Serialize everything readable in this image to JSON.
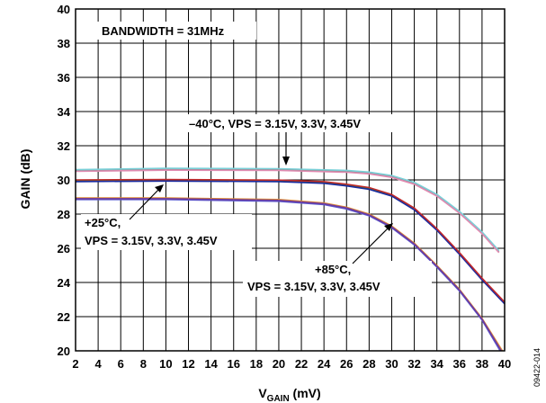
{
  "chart_data": {
    "type": "line",
    "xlabel": "V",
    "xlabel_sub": "GAIN",
    "xlabel_unit": " (mV)",
    "ylabel": "GAIN (dB)",
    "xlim": [
      2,
      40
    ],
    "ylim": [
      20,
      40
    ],
    "x_ticks": [
      2,
      4,
      6,
      8,
      10,
      12,
      14,
      16,
      18,
      20,
      22,
      24,
      26,
      28,
      30,
      32,
      34,
      36,
      38,
      40
    ],
    "y_ticks": [
      20,
      22,
      24,
      26,
      28,
      30,
      32,
      34,
      36,
      38,
      40
    ],
    "grid": true,
    "annotations": {
      "bandwidth": "BANDWIDTH = 31MHz",
      "cold": "–40°C, VPS = 3.15V, 3.3V, 3.45V",
      "room_line1": "+25°C,",
      "room_line2": "VPS = 3.15V, 3.3V, 3.45V",
      "hot_line1": "+85°C,",
      "hot_line2": "VPS = 3.15V, 3.3V, 3.45V"
    },
    "figure_id": "09422-014",
    "series": [
      {
        "color": "#8a8a8a",
        "points": [
          [
            2,
            30.55
          ],
          [
            10,
            30.62
          ],
          [
            20,
            30.6
          ],
          [
            26,
            30.5
          ],
          [
            28,
            30.4
          ],
          [
            30,
            30.2
          ],
          [
            32,
            29.8
          ],
          [
            34,
            29.1
          ],
          [
            36,
            28.1
          ],
          [
            38,
            26.9
          ],
          [
            39.5,
            25.8
          ]
        ]
      },
      {
        "color": "#7ad0d8",
        "points": [
          [
            2,
            30.6
          ],
          [
            10,
            30.68
          ],
          [
            20,
            30.66
          ],
          [
            26,
            30.56
          ],
          [
            28,
            30.46
          ],
          [
            30,
            30.26
          ],
          [
            32,
            29.86
          ],
          [
            34,
            29.16
          ],
          [
            36,
            28.16
          ],
          [
            38,
            26.96
          ],
          [
            39.5,
            25.86
          ]
        ]
      },
      {
        "color": "#e08ab0",
        "points": [
          [
            2,
            30.5
          ],
          [
            10,
            30.57
          ],
          [
            20,
            30.55
          ],
          [
            26,
            30.45
          ],
          [
            28,
            30.35
          ],
          [
            30,
            30.15
          ],
          [
            32,
            29.75
          ],
          [
            34,
            29.05
          ],
          [
            36,
            28.05
          ],
          [
            38,
            26.85
          ],
          [
            39.5,
            25.75
          ]
        ]
      },
      {
        "color": "#1f8a3a",
        "points": [
          [
            2,
            29.95
          ],
          [
            10,
            29.98
          ],
          [
            20,
            29.95
          ],
          [
            24,
            29.85
          ],
          [
            26,
            29.7
          ],
          [
            28,
            29.5
          ],
          [
            30,
            29.1
          ],
          [
            32,
            28.3
          ],
          [
            34,
            27.1
          ],
          [
            36,
            25.7
          ],
          [
            38,
            24.2
          ],
          [
            40,
            22.8
          ]
        ]
      },
      {
        "color": "#1a2aa0",
        "points": [
          [
            2,
            29.9
          ],
          [
            10,
            29.93
          ],
          [
            20,
            29.9
          ],
          [
            24,
            29.8
          ],
          [
            26,
            29.65
          ],
          [
            28,
            29.45
          ],
          [
            30,
            29.05
          ],
          [
            32,
            28.25
          ],
          [
            34,
            27.05
          ],
          [
            36,
            25.65
          ],
          [
            38,
            24.15
          ],
          [
            40,
            22.75
          ]
        ]
      },
      {
        "color": "#c0282a",
        "points": [
          [
            2,
            30.0
          ],
          [
            10,
            30.02
          ],
          [
            20,
            29.99
          ],
          [
            24,
            29.9
          ],
          [
            26,
            29.75
          ],
          [
            28,
            29.55
          ],
          [
            30,
            29.15
          ],
          [
            32,
            28.35
          ],
          [
            34,
            27.15
          ],
          [
            36,
            25.75
          ],
          [
            38,
            24.25
          ],
          [
            40,
            22.85
          ]
        ]
      },
      {
        "color": "#e08a30",
        "points": [
          [
            2,
            28.95
          ],
          [
            10,
            28.95
          ],
          [
            20,
            28.85
          ],
          [
            24,
            28.65
          ],
          [
            26,
            28.4
          ],
          [
            28,
            28.0
          ],
          [
            30,
            27.3
          ],
          [
            32,
            26.3
          ],
          [
            34,
            25.0
          ],
          [
            36,
            23.6
          ],
          [
            38,
            21.9
          ],
          [
            39.8,
            20.0
          ]
        ]
      },
      {
        "color": "#5a5ad0",
        "points": [
          [
            2,
            28.85
          ],
          [
            10,
            28.85
          ],
          [
            20,
            28.75
          ],
          [
            24,
            28.55
          ],
          [
            26,
            28.3
          ],
          [
            28,
            27.9
          ],
          [
            30,
            27.2
          ],
          [
            32,
            26.2
          ],
          [
            34,
            24.9
          ],
          [
            36,
            23.5
          ],
          [
            38,
            21.8
          ],
          [
            39.6,
            20.0
          ]
        ]
      },
      {
        "color": "#6a3aa0",
        "points": [
          [
            2,
            28.9
          ],
          [
            10,
            28.9
          ],
          [
            20,
            28.8
          ],
          [
            24,
            28.6
          ],
          [
            26,
            28.35
          ],
          [
            28,
            27.95
          ],
          [
            30,
            27.25
          ],
          [
            32,
            26.25
          ],
          [
            34,
            24.95
          ],
          [
            36,
            23.55
          ],
          [
            38,
            21.85
          ],
          [
            39.7,
            20.0
          ]
        ]
      }
    ]
  }
}
